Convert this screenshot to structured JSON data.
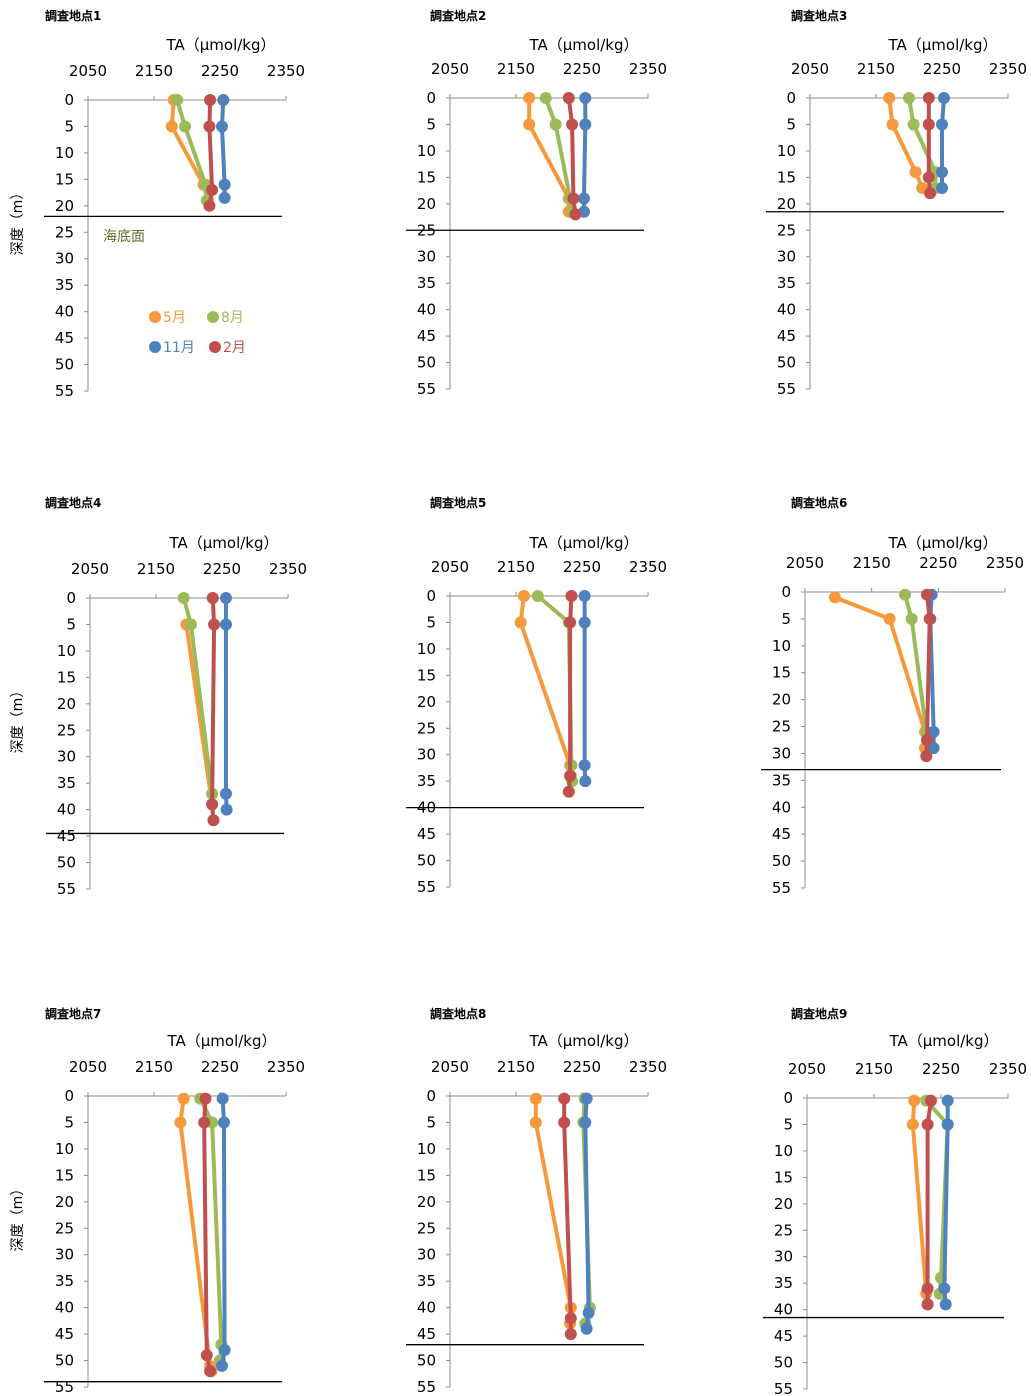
{
  "figure": {
    "ylabel": "深度（m）",
    "legend_rows": [
      [
        "5月",
        "8月"
      ],
      [
        "11月",
        "2月"
      ]
    ],
    "seabed_label": "海底面"
  },
  "series_defs": [
    {
      "name": "5月",
      "color": "#f59a3c"
    },
    {
      "name": "8月",
      "color": "#9bbb59"
    },
    {
      "name": "11月",
      "color": "#4f81bd"
    },
    {
      "name": "2月",
      "color": "#c0504d"
    }
  ],
  "chart_data": [
    {
      "type": "line",
      "title": "調査地点1",
      "xlabel": "TA（μmol/kg）",
      "xlim": [
        2050,
        2350
      ],
      "ylim": [
        0,
        55
      ],
      "x_ticks": [
        2050,
        2150,
        2250,
        2350
      ],
      "y_ticks": [
        0,
        5,
        10,
        15,
        20,
        25,
        30,
        35,
        40,
        45,
        50,
        55
      ],
      "seabed_depth": 22,
      "series": [
        {
          "name": "5月",
          "values": [
            [
              2180,
              0
            ],
            [
              2177,
              5
            ],
            [
              2225,
              16
            ],
            [
              2232,
              19
            ]
          ]
        },
        {
          "name": "8月",
          "values": [
            [
              2185,
              0
            ],
            [
              2197,
              5
            ],
            [
              2228,
              16
            ],
            [
              2230,
              19
            ]
          ]
        },
        {
          "name": "11月",
          "values": [
            [
              2255,
              0
            ],
            [
              2253,
              5
            ],
            [
              2257,
              16
            ],
            [
              2257,
              18.5
            ]
          ]
        },
        {
          "name": "2月",
          "values": [
            [
              2235,
              0
            ],
            [
              2234,
              5
            ],
            [
              2238,
              17
            ],
            [
              2234,
              20
            ]
          ]
        }
      ]
    },
    {
      "type": "line",
      "title": "調査地点2",
      "xlabel": "TA（μmol/kg）",
      "xlim": [
        2050,
        2350
      ],
      "ylim": [
        0,
        55
      ],
      "x_ticks": [
        2050,
        2150,
        2250,
        2350
      ],
      "y_ticks": [
        0,
        5,
        10,
        15,
        20,
        25,
        30,
        35,
        40,
        45,
        50,
        55
      ],
      "seabed_depth": 25,
      "series": [
        {
          "name": "5月",
          "values": [
            [
              2170,
              0
            ],
            [
              2170,
              5
            ],
            [
              2230,
              19
            ],
            [
              2230,
              21.5
            ]
          ]
        },
        {
          "name": "8月",
          "values": [
            [
              2195,
              0
            ],
            [
              2210,
              5
            ],
            [
              2232,
              19
            ],
            [
              2235,
              21.5
            ]
          ]
        },
        {
          "name": "11月",
          "values": [
            [
              2255,
              0
            ],
            [
              2255,
              5
            ],
            [
              2253,
              19
            ],
            [
              2253,
              21.5
            ]
          ]
        },
        {
          "name": "2月",
          "values": [
            [
              2230,
              0
            ],
            [
              2235,
              5
            ],
            [
              2237,
              19
            ],
            [
              2240,
              22
            ]
          ]
        }
      ]
    },
    {
      "type": "line",
      "title": "調査地点3",
      "xlabel": "TA（μmol/kg）",
      "xlim": [
        2050,
        2350
      ],
      "ylim": [
        0,
        55
      ],
      "x_ticks": [
        2050,
        2150,
        2250,
        2350
      ],
      "y_ticks": [
        0,
        5,
        10,
        15,
        20,
        25,
        30,
        35,
        40,
        45,
        50,
        55
      ],
      "seabed_depth": 21.5,
      "series": [
        {
          "name": "5月",
          "values": [
            [
              2170,
              0
            ],
            [
              2175,
              5
            ],
            [
              2210,
              14
            ],
            [
              2220,
              17
            ]
          ]
        },
        {
          "name": "8月",
          "values": [
            [
              2200,
              0
            ],
            [
              2207,
              5
            ],
            [
              2240,
              14
            ],
            [
              2240,
              17
            ]
          ]
        },
        {
          "name": "11月",
          "values": [
            [
              2253,
              0
            ],
            [
              2250,
              5
            ],
            [
              2250,
              14
            ],
            [
              2250,
              17
            ]
          ]
        },
        {
          "name": "2月",
          "values": [
            [
              2230,
              0
            ],
            [
              2230,
              5
            ],
            [
              2230,
              15
            ],
            [
              2232,
              18
            ]
          ]
        }
      ]
    },
    {
      "type": "line",
      "title": "調査地点4",
      "xlabel": "TA（μmol/kg）",
      "xlim": [
        2050,
        2350
      ],
      "ylim": [
        0,
        55
      ],
      "x_ticks": [
        2050,
        2150,
        2250,
        2350
      ],
      "y_ticks": [
        0,
        5,
        10,
        15,
        20,
        25,
        30,
        35,
        40,
        45,
        50,
        55
      ],
      "seabed_depth": 44.5,
      "series": [
        {
          "name": "5月",
          "values": [
            [
              2196,
              5
            ],
            [
              2235,
              39
            ]
          ]
        },
        {
          "name": "8月",
          "values": [
            [
              2192,
              0
            ],
            [
              2203,
              5
            ],
            [
              2235,
              37
            ]
          ]
        },
        {
          "name": "11月",
          "values": [
            [
              2256,
              0
            ],
            [
              2256,
              5
            ],
            [
              2256,
              37
            ],
            [
              2257,
              40
            ]
          ]
        },
        {
          "name": "2月",
          "values": [
            [
              2236,
              0
            ],
            [
              2238,
              5
            ],
            [
              2235,
              39
            ],
            [
              2237,
              42
            ]
          ]
        }
      ]
    },
    {
      "type": "line",
      "title": "調査地点5",
      "xlabel": "TA（μmol/kg）",
      "xlim": [
        2050,
        2350
      ],
      "ylim": [
        0,
        55
      ],
      "x_ticks": [
        2050,
        2150,
        2250,
        2350
      ],
      "y_ticks": [
        0,
        5,
        10,
        15,
        20,
        25,
        30,
        35,
        40,
        45,
        50,
        55
      ],
      "seabed_depth": 40,
      "series": [
        {
          "name": "5月",
          "values": [
            [
              2162,
              0
            ],
            [
              2157,
              5
            ],
            [
              2232,
              32
            ],
            [
              2233,
              34
            ]
          ]
        },
        {
          "name": "8月",
          "values": [
            [
              2183,
              0
            ],
            [
              2230,
              5
            ],
            [
              2234,
              32
            ],
            [
              2235,
              35
            ]
          ]
        },
        {
          "name": "11月",
          "values": [
            [
              2254,
              0
            ],
            [
              2254,
              5
            ],
            [
              2254,
              32
            ],
            [
              2255,
              35
            ]
          ]
        },
        {
          "name": "2月",
          "values": [
            [
              2234,
              0
            ],
            [
              2232,
              5
            ],
            [
              2232,
              34
            ],
            [
              2230,
              37
            ]
          ]
        }
      ]
    },
    {
      "type": "line",
      "title": "調査地点6",
      "xlabel": "TA（μmol/kg）",
      "xlim": [
        2050,
        2350
      ],
      "ylim": [
        0,
        55
      ],
      "x_ticks": [
        2050,
        2150,
        2250,
        2350
      ],
      "y_ticks": [
        0,
        5,
        10,
        15,
        20,
        25,
        30,
        35,
        40,
        45,
        50,
        55
      ],
      "seabed_depth": 33,
      "series": [
        {
          "name": "5月",
          "values": [
            [
              2095,
              1
            ],
            [
              2177,
              5
            ],
            [
              2230,
              26
            ],
            [
              2230,
              29
            ]
          ]
        },
        {
          "name": "8月",
          "values": [
            [
              2200,
              0.5
            ],
            [
              2210,
              5
            ],
            [
              2232,
              26
            ],
            [
              2235,
              28
            ]
          ]
        },
        {
          "name": "11月",
          "values": [
            [
              2240,
              0.5
            ],
            [
              2238,
              5
            ],
            [
              2243,
              26
            ],
            [
              2243,
              29
            ]
          ]
        },
        {
          "name": "2月",
          "values": [
            [
              2233,
              0.5
            ],
            [
              2237,
              5
            ],
            [
              2233,
              27.5
            ],
            [
              2232,
              30.5
            ]
          ]
        }
      ]
    },
    {
      "type": "line",
      "title": "調査地点7",
      "xlabel": "TA（μmol/kg）",
      "xlim": [
        2050,
        2350
      ],
      "ylim": [
        0,
        55
      ],
      "x_ticks": [
        2050,
        2150,
        2250,
        2350
      ],
      "y_ticks": [
        0,
        5,
        10,
        15,
        20,
        25,
        30,
        35,
        40,
        45,
        50,
        55
      ],
      "seabed_depth": 54,
      "series": [
        {
          "name": "5月",
          "values": [
            [
              2195,
              0.5
            ],
            [
              2190,
              5
            ],
            [
              2235,
              51
            ],
            [
              2237,
              52
            ]
          ]
        },
        {
          "name": "8月",
          "values": [
            [
              2220,
              0.5
            ],
            [
              2238,
              5
            ],
            [
              2252,
              47
            ],
            [
              2250,
              50
            ]
          ]
        },
        {
          "name": "11月",
          "values": [
            [
              2254,
              0.5
            ],
            [
              2256,
              5
            ],
            [
              2257,
              48
            ],
            [
              2253,
              51
            ]
          ]
        },
        {
          "name": "2月",
          "values": [
            [
              2228,
              0.5
            ],
            [
              2226,
              5
            ],
            [
              2230,
              49
            ],
            [
              2235,
              52
            ]
          ]
        }
      ]
    },
    {
      "type": "line",
      "title": "調査地点8",
      "xlabel": "TA（μmol/kg）",
      "xlim": [
        2050,
        2350
      ],
      "ylim": [
        0,
        55
      ],
      "x_ticks": [
        2050,
        2150,
        2250,
        2350
      ],
      "y_ticks": [
        0,
        5,
        10,
        15,
        20,
        25,
        30,
        35,
        40,
        45,
        50,
        55
      ],
      "seabed_depth": 47,
      "series": [
        {
          "name": "5月",
          "values": [
            [
              2180,
              0.5
            ],
            [
              2180,
              5
            ],
            [
              2233,
              40
            ],
            [
              2232,
              43
            ]
          ]
        },
        {
          "name": "8月",
          "values": [
            [
              2254,
              0.5
            ],
            [
              2252,
              5
            ],
            [
              2262,
              40
            ],
            [
              2255,
              43
            ]
          ]
        },
        {
          "name": "11月",
          "values": [
            [
              2257,
              0.5
            ],
            [
              2255,
              5
            ],
            [
              2260,
              41
            ],
            [
              2257,
              44
            ]
          ]
        },
        {
          "name": "2月",
          "values": [
            [
              2223,
              0.5
            ],
            [
              2223,
              5
            ],
            [
              2233,
              42
            ],
            [
              2233,
              45
            ]
          ]
        }
      ]
    },
    {
      "type": "line",
      "title": "調査地点9",
      "xlabel": "TA（μmol/kg）",
      "xlim": [
        2050,
        2350
      ],
      "ylim": [
        0,
        55
      ],
      "x_ticks": [
        2050,
        2150,
        2250,
        2350
      ],
      "y_ticks": [
        0,
        5,
        10,
        15,
        20,
        25,
        30,
        35,
        40,
        45,
        50,
        55
      ],
      "seabed_depth": 41.5,
      "series": [
        {
          "name": "5月",
          "values": [
            [
              2210,
              0.5
            ],
            [
              2208,
              5
            ],
            [
              2228,
              37
            ],
            [
              2230,
              39
            ]
          ]
        },
        {
          "name": "8月",
          "values": [
            [
              2228,
              0.5
            ],
            [
              2260,
              5
            ],
            [
              2250,
              34
            ],
            [
              2248,
              37
            ]
          ]
        },
        {
          "name": "11月",
          "values": [
            [
              2260,
              0.5
            ],
            [
              2260,
              5
            ],
            [
              2255,
              36
            ],
            [
              2257,
              39
            ]
          ]
        },
        {
          "name": "2月",
          "values": [
            [
              2235,
              0.5
            ],
            [
              2230,
              5
            ],
            [
              2230,
              36
            ],
            [
              2230,
              39
            ]
          ]
        }
      ]
    }
  ]
}
